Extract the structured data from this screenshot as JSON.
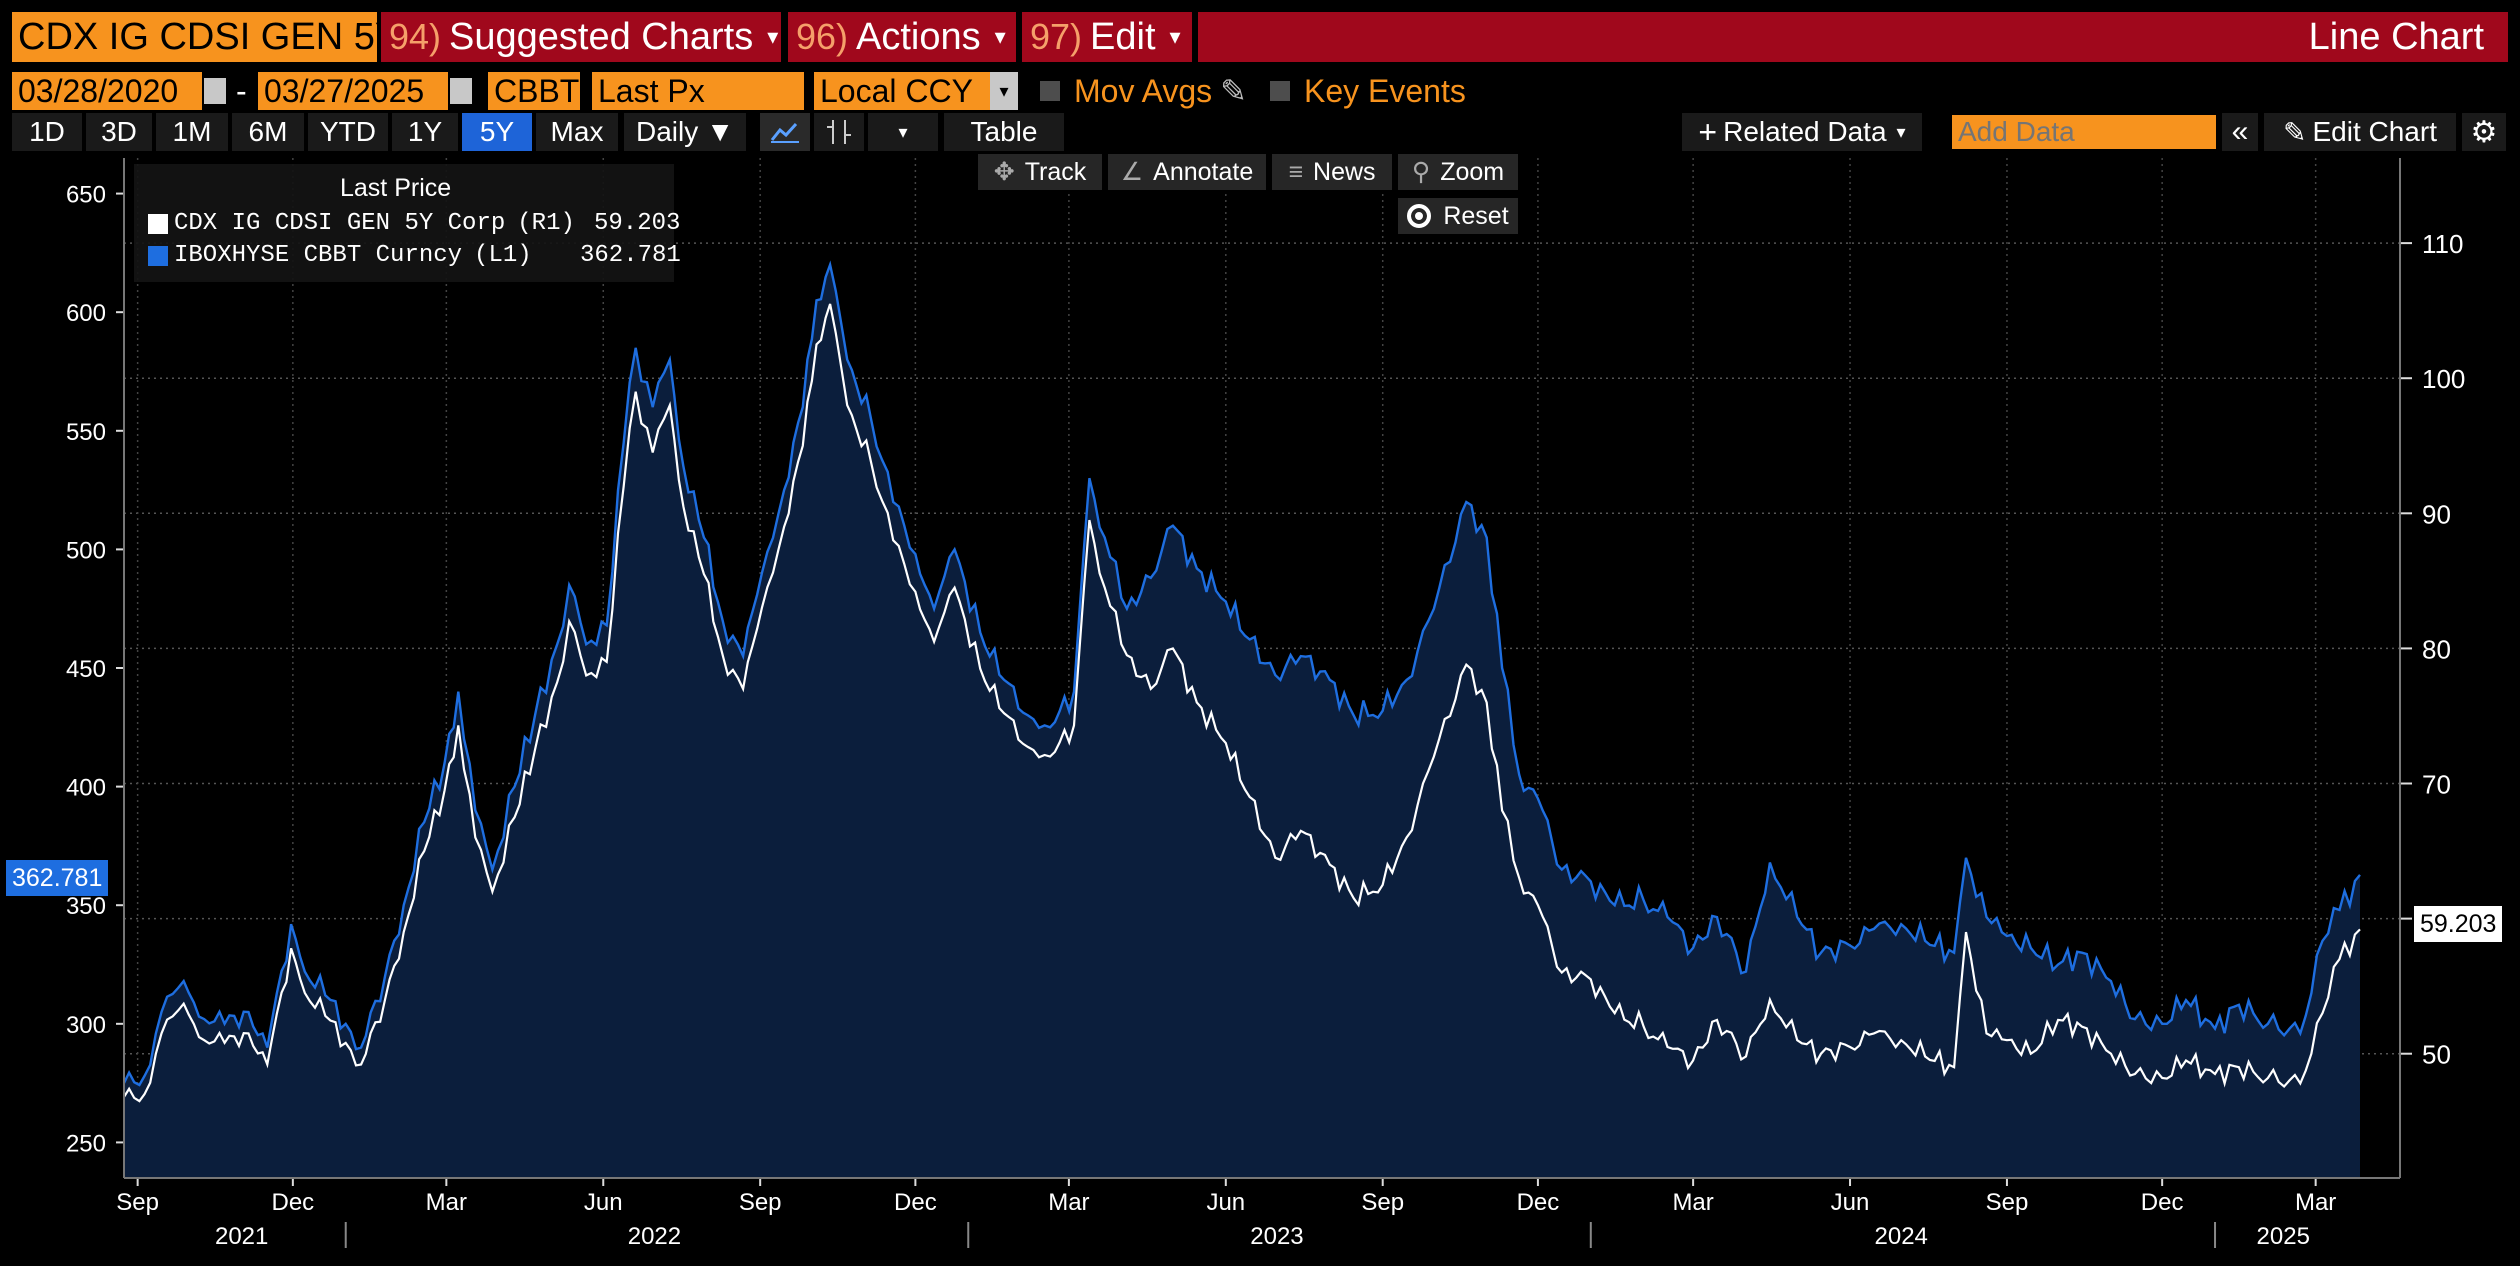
{
  "toolbar": {
    "ticker": "CDX IG CDSI GEN 5Y",
    "suggested": {
      "num": "94)",
      "label": "Suggested Charts"
    },
    "actions": {
      "num": "96)",
      "label": "Actions"
    },
    "edit": {
      "num": "97)",
      "label": "Edit"
    },
    "chart_type": "Line Chart"
  },
  "fields": {
    "start_date": "03/28/2020",
    "end_date": "03/27/2025",
    "source": "CBBT",
    "field": "Last Px",
    "currency": "Local CCY",
    "mov_avgs": "Mov Avgs",
    "key_events": "Key Events"
  },
  "periods": [
    "1D",
    "3D",
    "1M",
    "6M",
    "YTD",
    "1Y",
    "5Y",
    "Max"
  ],
  "active_period": "5Y",
  "frequency": "Daily",
  "table_label": "Table",
  "related_data": "Related Data",
  "add_data_placeholder": "Add Data",
  "edit_chart": "Edit Chart",
  "tools": {
    "track": "Track",
    "annotate": "Annotate",
    "news": "News",
    "zoom": "Zoom",
    "reset": "Reset"
  },
  "icons": [
    "calendar-icon",
    "pencil-icon",
    "line-chart-icon",
    "candlestick-icon",
    "crosshair-icon",
    "annotate-icon",
    "news-icon",
    "zoom-icon",
    "gear-icon",
    "double-chevron-left-icon"
  ],
  "colors": {
    "toolbar_red": "#a0081c",
    "orange": "#f7931e",
    "series_white": "#ffffff",
    "series_blue": "#1e6ee0",
    "area_fill": "#0b1e3c",
    "active_button": "#1e64d8"
  },
  "chart_data": {
    "type": "line",
    "legend": {
      "title": "Last Price",
      "entries": [
        {
          "name": "CDX IG CDSI GEN 5Y Corp",
          "axis": "(R1)",
          "last": "59.203"
        },
        {
          "name": "IBOXHYSE CBBT Curncy",
          "axis": "(L1)",
          "last": "362.781"
        }
      ],
      "placement": "top-left"
    },
    "left_axis": {
      "ticks": [
        "250",
        "300",
        "350",
        "400",
        "450",
        "500",
        "550",
        "600",
        "650"
      ],
      "range": [
        235,
        665
      ]
    },
    "right_axis": {
      "ticks": [
        "50",
        "60",
        "70",
        "80",
        "90",
        "100",
        "110"
      ],
      "range": [
        40.8,
        116.3
      ]
    },
    "x_axis": {
      "start": "2021-08-24",
      "end": "2025-03-27",
      "months": [
        {
          "label": "Sep",
          "date": "2021-09-01"
        },
        {
          "label": "Dec",
          "date": "2021-12-01"
        },
        {
          "label": "Mar",
          "date": "2022-03-01"
        },
        {
          "label": "Jun",
          "date": "2022-06-01"
        },
        {
          "label": "Sep",
          "date": "2022-09-01"
        },
        {
          "label": "Dec",
          "date": "2022-12-01"
        },
        {
          "label": "Mar",
          "date": "2023-03-01"
        },
        {
          "label": "Jun",
          "date": "2023-06-01"
        },
        {
          "label": "Sep",
          "date": "2023-09-01"
        },
        {
          "label": "Dec",
          "date": "2023-12-01"
        },
        {
          "label": "Mar",
          "date": "2024-03-01"
        },
        {
          "label": "Jun",
          "date": "2024-06-01"
        },
        {
          "label": "Sep",
          "date": "2024-09-01"
        },
        {
          "label": "Dec",
          "date": "2024-12-01"
        },
        {
          "label": "Mar",
          "date": "2025-03-01"
        }
      ],
      "years": [
        {
          "label": "2021",
          "date": "2021-11-01"
        },
        {
          "label": "2022",
          "date": "2022-07-01"
        },
        {
          "label": "2023",
          "date": "2023-07-01"
        },
        {
          "label": "2024",
          "date": "2024-07-01"
        },
        {
          "label": "2025",
          "date": "2025-02-10"
        }
      ],
      "year_separators": [
        "2022-01-01",
        "2023-01-01",
        "2024-01-01",
        "2025-01-01"
      ]
    },
    "last_value_flags": {
      "left": "362.781",
      "right": "59.203"
    },
    "series": [
      {
        "name": "IBOXHYSE CBBT Curncy",
        "axis": "left",
        "color": "#1e6ee0",
        "points": [
          [
            "2021-08-24",
            275
          ],
          [
            "2021-09-05",
            278
          ],
          [
            "2021-09-15",
            305
          ],
          [
            "2021-09-28",
            318
          ],
          [
            "2021-10-10",
            302
          ],
          [
            "2021-10-22",
            300
          ],
          [
            "2021-11-05",
            305
          ],
          [
            "2021-11-16",
            290
          ],
          [
            "2021-11-30",
            342
          ],
          [
            "2021-12-08",
            322
          ],
          [
            "2021-12-20",
            312
          ],
          [
            "2022-01-01",
            300
          ],
          [
            "2022-01-10",
            290
          ],
          [
            "2022-01-24",
            320
          ],
          [
            "2022-02-04",
            350
          ],
          [
            "2022-02-16",
            385
          ],
          [
            "2022-02-28",
            410
          ],
          [
            "2022-03-08",
            440
          ],
          [
            "2022-03-18",
            390
          ],
          [
            "2022-03-28",
            365
          ],
          [
            "2022-04-10",
            400
          ],
          [
            "2022-04-22",
            430
          ],
          [
            "2022-05-05",
            460
          ],
          [
            "2022-05-12",
            485
          ],
          [
            "2022-05-22",
            460
          ],
          [
            "2022-06-03",
            468
          ],
          [
            "2022-06-13",
            545
          ],
          [
            "2022-06-20",
            585
          ],
          [
            "2022-06-30",
            560
          ],
          [
            "2022-07-10",
            580
          ],
          [
            "2022-07-18",
            535
          ],
          [
            "2022-07-30",
            505
          ],
          [
            "2022-08-10",
            470
          ],
          [
            "2022-08-22",
            455
          ],
          [
            "2022-09-02",
            490
          ],
          [
            "2022-09-15",
            525
          ],
          [
            "2022-09-26",
            560
          ],
          [
            "2022-10-04",
            605
          ],
          [
            "2022-10-12",
            620
          ],
          [
            "2022-10-22",
            580
          ],
          [
            "2022-11-05",
            555
          ],
          [
            "2022-11-18",
            520
          ],
          [
            "2022-12-01",
            498
          ],
          [
            "2022-12-12",
            475
          ],
          [
            "2022-12-24",
            500
          ],
          [
            "2023-01-08",
            465
          ],
          [
            "2023-01-22",
            445
          ],
          [
            "2023-02-05",
            430
          ],
          [
            "2023-02-18",
            425
          ],
          [
            "2023-03-04",
            440
          ],
          [
            "2023-03-13",
            530
          ],
          [
            "2023-03-22",
            505
          ],
          [
            "2023-04-04",
            475
          ],
          [
            "2023-04-18",
            488
          ],
          [
            "2023-05-01",
            510
          ],
          [
            "2023-05-15",
            492
          ],
          [
            "2023-06-01",
            478
          ],
          [
            "2023-06-15",
            462
          ],
          [
            "2023-06-30",
            447
          ],
          [
            "2023-07-15",
            455
          ],
          [
            "2023-08-01",
            445
          ],
          [
            "2023-08-15",
            430
          ],
          [
            "2023-09-01",
            432
          ],
          [
            "2023-09-15",
            445
          ],
          [
            "2023-10-01",
            475
          ],
          [
            "2023-10-20",
            520
          ],
          [
            "2023-11-01",
            505
          ],
          [
            "2023-11-10",
            450
          ],
          [
            "2023-11-20",
            405
          ],
          [
            "2023-12-01",
            395
          ],
          [
            "2023-12-15",
            365
          ],
          [
            "2024-01-01",
            360
          ],
          [
            "2024-01-15",
            350
          ],
          [
            "2024-02-01",
            352
          ],
          [
            "2024-02-15",
            345
          ],
          [
            "2024-03-01",
            332
          ],
          [
            "2024-03-15",
            345
          ],
          [
            "2024-04-01",
            322
          ],
          [
            "2024-04-15",
            368
          ],
          [
            "2024-05-01",
            345
          ],
          [
            "2024-05-15",
            330
          ],
          [
            "2024-06-01",
            333
          ],
          [
            "2024-06-15",
            340
          ],
          [
            "2024-07-01",
            342
          ],
          [
            "2024-07-15",
            335
          ],
          [
            "2024-08-01",
            330
          ],
          [
            "2024-08-08",
            370
          ],
          [
            "2024-08-20",
            345
          ],
          [
            "2024-09-01",
            337
          ],
          [
            "2024-09-15",
            332
          ],
          [
            "2024-10-01",
            325
          ],
          [
            "2024-10-15",
            330
          ],
          [
            "2024-11-01",
            318
          ],
          [
            "2024-11-15",
            302
          ],
          [
            "2024-12-01",
            300
          ],
          [
            "2024-12-15",
            310
          ],
          [
            "2025-01-01",
            298
          ],
          [
            "2025-01-15",
            308
          ],
          [
            "2025-02-01",
            300
          ],
          [
            "2025-02-20",
            296
          ],
          [
            "2025-03-05",
            335
          ],
          [
            "2025-03-15",
            348
          ],
          [
            "2025-03-27",
            362.781
          ]
        ]
      },
      {
        "name": "CDX IG CDSI GEN 5Y Corp",
        "axis": "right",
        "color": "#ffffff",
        "points": [
          [
            "2021-08-24",
            46.8
          ],
          [
            "2021-09-05",
            47.0
          ],
          [
            "2021-09-15",
            51.5
          ],
          [
            "2021-09-28",
            53.7
          ],
          [
            "2021-10-10",
            51.0
          ],
          [
            "2021-10-22",
            50.8
          ],
          [
            "2021-11-05",
            51.5
          ],
          [
            "2021-11-16",
            49.2
          ],
          [
            "2021-11-30",
            57.8
          ],
          [
            "2021-12-08",
            54.5
          ],
          [
            "2021-12-20",
            52.8
          ],
          [
            "2022-01-01",
            50.8
          ],
          [
            "2022-01-10",
            49.2
          ],
          [
            "2022-01-24",
            54.0
          ],
          [
            "2022-02-04",
            59.0
          ],
          [
            "2022-02-16",
            65.0
          ],
          [
            "2022-02-28",
            69.5
          ],
          [
            "2022-03-08",
            74.3
          ],
          [
            "2022-03-18",
            66.0
          ],
          [
            "2022-03-28",
            62.0
          ],
          [
            "2022-04-10",
            67.5
          ],
          [
            "2022-04-22",
            72.5
          ],
          [
            "2022-05-05",
            77.5
          ],
          [
            "2022-05-12",
            82.0
          ],
          [
            "2022-05-22",
            78.0
          ],
          [
            "2022-06-03",
            79.0
          ],
          [
            "2022-06-13",
            92.0
          ],
          [
            "2022-06-20",
            99.0
          ],
          [
            "2022-06-30",
            94.5
          ],
          [
            "2022-07-10",
            98.0
          ],
          [
            "2022-07-18",
            90.5
          ],
          [
            "2022-07-30",
            85.5
          ],
          [
            "2022-08-10",
            79.5
          ],
          [
            "2022-08-22",
            77.0
          ],
          [
            "2022-09-02",
            83.0
          ],
          [
            "2022-09-15",
            89.0
          ],
          [
            "2022-09-26",
            95.0
          ],
          [
            "2022-10-04",
            102.5
          ],
          [
            "2022-10-12",
            105.5
          ],
          [
            "2022-10-22",
            98.0
          ],
          [
            "2022-11-05",
            93.8
          ],
          [
            "2022-11-18",
            88.0
          ],
          [
            "2022-12-01",
            84.2
          ],
          [
            "2022-12-12",
            80.5
          ],
          [
            "2022-12-24",
            84.5
          ],
          [
            "2023-01-08",
            78.5
          ],
          [
            "2023-01-22",
            75.2
          ],
          [
            "2023-02-05",
            72.7
          ],
          [
            "2023-02-18",
            72.0
          ],
          [
            "2023-03-04",
            74.3
          ],
          [
            "2023-03-13",
            89.5
          ],
          [
            "2023-03-22",
            84.5
          ],
          [
            "2023-04-04",
            79.5
          ],
          [
            "2023-04-18",
            77.0
          ],
          [
            "2023-05-01",
            80.0
          ],
          [
            "2023-05-15",
            76.0
          ],
          [
            "2023-06-01",
            73.0
          ],
          [
            "2023-06-15",
            69.0
          ],
          [
            "2023-06-30",
            64.5
          ],
          [
            "2023-07-15",
            66.5
          ],
          [
            "2023-08-01",
            64.0
          ],
          [
            "2023-08-15",
            61.5
          ],
          [
            "2023-09-01",
            62.5
          ],
          [
            "2023-09-15",
            66.0
          ],
          [
            "2023-10-01",
            72.0
          ],
          [
            "2023-10-20",
            78.8
          ],
          [
            "2023-11-01",
            76.0
          ],
          [
            "2023-11-10",
            68.0
          ],
          [
            "2023-11-20",
            63.0
          ],
          [
            "2023-12-01",
            61.0
          ],
          [
            "2023-12-15",
            56.0
          ],
          [
            "2024-01-01",
            55.5
          ],
          [
            "2024-01-15",
            53.0
          ],
          [
            "2024-02-01",
            52.0
          ],
          [
            "2024-02-15",
            50.5
          ],
          [
            "2024-03-01",
            49.5
          ],
          [
            "2024-03-15",
            52.5
          ],
          [
            "2024-04-01",
            49.8
          ],
          [
            "2024-04-15",
            54.0
          ],
          [
            "2024-05-01",
            51.0
          ],
          [
            "2024-05-15",
            50.0
          ],
          [
            "2024-06-01",
            50.5
          ],
          [
            "2024-06-15",
            51.5
          ],
          [
            "2024-07-01",
            51.0
          ],
          [
            "2024-07-15",
            49.8
          ],
          [
            "2024-08-01",
            49.0
          ],
          [
            "2024-08-08",
            59.0
          ],
          [
            "2024-08-20",
            51.5
          ],
          [
            "2024-09-01",
            51.0
          ],
          [
            "2024-09-15",
            50.0
          ],
          [
            "2024-10-01",
            52.5
          ],
          [
            "2024-10-15",
            52.0
          ],
          [
            "2024-11-01",
            50.0
          ],
          [
            "2024-11-15",
            48.5
          ],
          [
            "2024-12-01",
            48.2
          ],
          [
            "2024-12-15",
            49.5
          ],
          [
            "2025-01-01",
            48.5
          ],
          [
            "2025-01-15",
            49.0
          ],
          [
            "2025-02-01",
            48.2
          ],
          [
            "2025-02-20",
            47.8
          ],
          [
            "2025-03-05",
            53.0
          ],
          [
            "2025-03-15",
            57.0
          ],
          [
            "2025-03-27",
            59.203
          ]
        ]
      }
    ]
  }
}
